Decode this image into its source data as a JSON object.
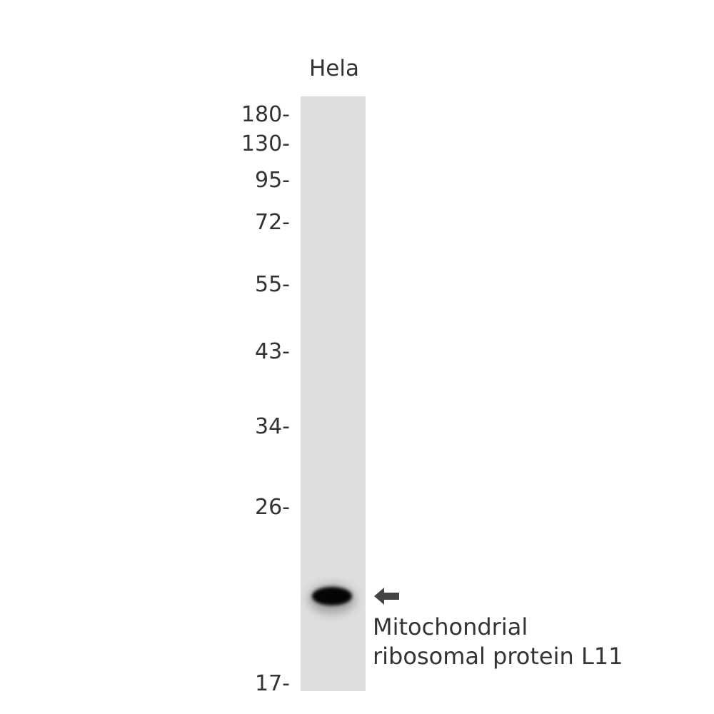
{
  "lanes": [
    {
      "label": "Hela"
    }
  ],
  "markers": [
    {
      "label": "180-",
      "kda": 180
    },
    {
      "label": "130-",
      "kda": 130
    },
    {
      "label": "95-",
      "kda": 95
    },
    {
      "label": "72-",
      "kda": 72
    },
    {
      "label": "55-",
      "kda": 55
    },
    {
      "label": "43-",
      "kda": 43
    },
    {
      "label": "34-",
      "kda": 34
    },
    {
      "label": "26-",
      "kda": 26
    },
    {
      "label": "17-",
      "kda": 17
    }
  ],
  "target": {
    "line1": "Mitochondrial",
    "line2": "ribosomal protein L11",
    "arrow_icon": "arrow-left-icon",
    "arrow_color": "#444444"
  }
}
